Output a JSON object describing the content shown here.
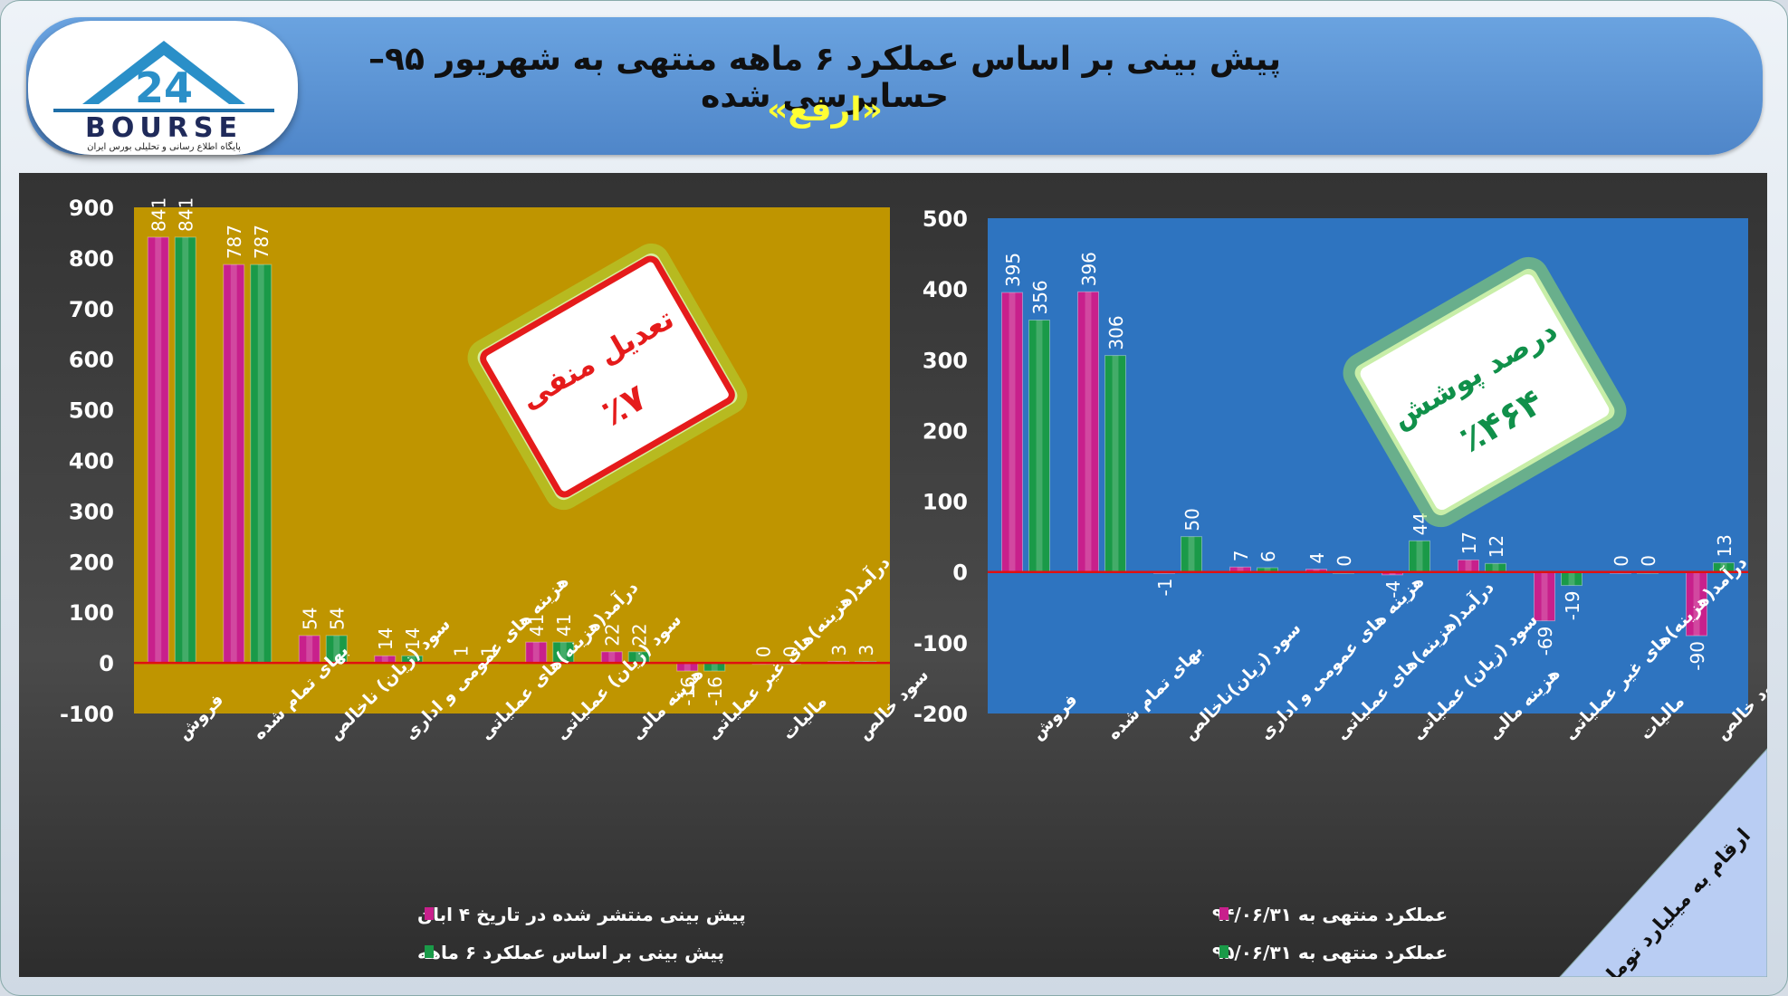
{
  "header": {
    "title": "پیش بینی بر اساس عملکرد ۶ ماهه منتهی به شهریور ۹۵–حسابرسی شده",
    "subtitle": "«ارفع»"
  },
  "logo": {
    "brand": "BOURSE",
    "number": "24",
    "tagline": "پایگاه اطلاع رسانی و تحلیلی بورس ایران"
  },
  "badge_left": {
    "line1": "تعدیل منفی",
    "line2": "٪۷"
  },
  "badge_right": {
    "line1": "درصد پوشش",
    "line2": "٪۴۶۴"
  },
  "corner_note": "ارقام به میلیارد تومان",
  "colors": {
    "series1": "#c8208c",
    "series2": "#1a9a48",
    "left_plot": "#bf9500",
    "right_plot": "#2e74c0",
    "zero_line": "#e01010"
  },
  "chart_data": [
    {
      "type": "bar",
      "categories": [
        "فروش",
        "بهای تمام شده",
        "سود (زیان) ناخالص",
        "هزینه های عمومی و اداری",
        "درآمد(هزینه)های عملیاتی",
        "سود (زیان) عملیاتی",
        "هزینه مالی",
        "درآمد(هزینه)های غیر عملیاتی",
        "مالیات",
        "سود خالص"
      ],
      "series": [
        {
          "name": "پیش بینی منتشر شده در تاریخ ۴ ابان",
          "values": [
            841,
            787,
            54,
            14,
            1,
            41,
            22,
            -16,
            0,
            3
          ]
        },
        {
          "name": "پیش بینی بر اساس عملکرد ۶ ماهه",
          "values": [
            841,
            787,
            54,
            14,
            1,
            41,
            22,
            -16,
            0,
            3
          ]
        }
      ],
      "ylim": [
        -100,
        900
      ],
      "yticks": [
        "900",
        "800",
        "700",
        "600",
        "500",
        "400",
        "300",
        "200",
        "100",
        "0",
        "-100"
      ],
      "grid": false,
      "legend": "bottom"
    },
    {
      "type": "bar",
      "categories": [
        "فروش",
        "بهای تمام شده",
        "سود (زیان)ناخالص",
        "هزینه های عمومی و اداری",
        "درآمد(هزینه)های عملیاتی",
        "سود (زیان) عملیاتی",
        "هزینه مالی",
        "درآمد(هزینه)های غیر عملیاتی",
        "مالیات",
        "سود خالص"
      ],
      "series": [
        {
          "name": "عملکرد منتهی به ۹۴/۰۶/۳۱",
          "values": [
            395,
            396,
            -1,
            7,
            4,
            -4,
            17,
            -69,
            0,
            -90
          ]
        },
        {
          "name": "عملکرد منتهی به ۹۵/۰۶/۳۱",
          "values": [
            356,
            306,
            50,
            6,
            0,
            44,
            12,
            -19,
            0,
            13
          ]
        }
      ],
      "ylim": [
        -200,
        500
      ],
      "yticks": [
        "500",
        "400",
        "300",
        "200",
        "100",
        "0",
        "-100",
        "-200"
      ],
      "grid": false,
      "legend": "bottom"
    }
  ]
}
